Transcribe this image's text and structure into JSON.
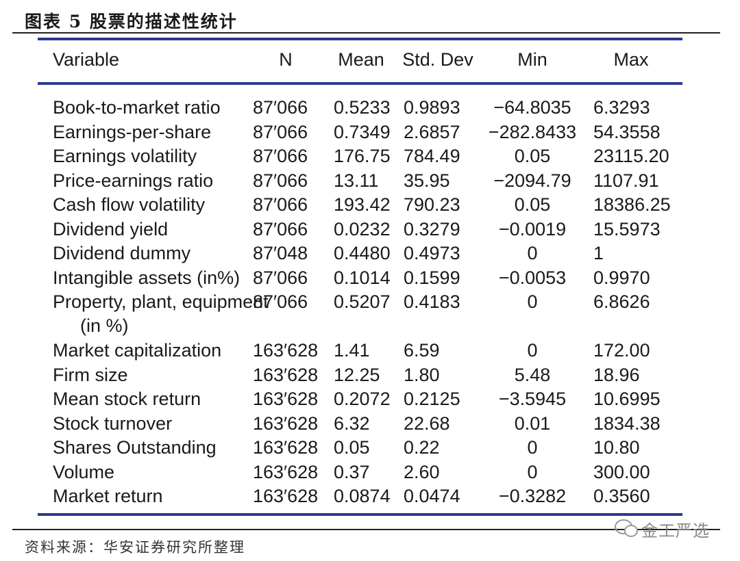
{
  "header": {
    "title": "图表 5 股票的描述性统计"
  },
  "table": {
    "columns": [
      "Variable",
      "N",
      "Mean",
      "Std. Dev",
      "Min",
      "Max"
    ],
    "rows": [
      [
        "Book-to-market ratio",
        "87′066",
        "0.5233",
        "0.9893",
        "−64.8035",
        "6.3293"
      ],
      [
        "Earnings-per-share",
        "87′066",
        "0.7349",
        "2.6857",
        "−282.8433",
        "54.3558"
      ],
      [
        "Earnings volatility",
        "87′066",
        "176.75",
        "784.49",
        "0.05",
        "23115.20"
      ],
      [
        "Price-earnings ratio",
        "87′066",
        "13.11",
        "35.95",
        "−2094.79",
        "1107.91"
      ],
      [
        "Cash flow volatility",
        "87′066",
        "193.42",
        "790.23",
        "0.05",
        "18386.25"
      ],
      [
        "Dividend yield",
        "87′066",
        "0.0232",
        "0.3279",
        "−0.0019",
        "15.5973"
      ],
      [
        "Dividend dummy",
        "87′048",
        "0.4480",
        "0.4973",
        "0",
        "1"
      ],
      [
        "Intangible assets (in%)",
        "87′066",
        "0.1014",
        "0.1599",
        "−0.0053",
        "0.9970"
      ],
      [
        "Property, plant, equipment (in %)",
        "87′066",
        "0.5207",
        "0.4183",
        "0",
        "6.8626"
      ],
      [
        "Market capitalization",
        "163′628",
        "1.41",
        "6.59",
        "0",
        "172.00"
      ],
      [
        "Firm size",
        "163′628",
        "12.25",
        "1.80",
        "5.48",
        "18.96"
      ],
      [
        "Mean stock return",
        "163′628",
        "0.2072",
        "0.2125",
        "−3.5945",
        "10.6995"
      ],
      [
        "Stock turnover",
        "163′628",
        "6.32",
        "22.68",
        "0.01",
        "1834.38"
      ],
      [
        "Shares Outstanding",
        "163′628",
        "0.05",
        "0.22",
        "0",
        "10.80"
      ],
      [
        "Volume",
        "163′628",
        "0.37",
        "2.60",
        "0",
        "300.00"
      ],
      [
        "Market return",
        "163′628",
        "0.0874",
        "0.0474",
        "−0.3282",
        "0.3560"
      ]
    ]
  },
  "footer": {
    "source": "资料来源：华安证券研究所整理",
    "watermark": "金工严选"
  }
}
